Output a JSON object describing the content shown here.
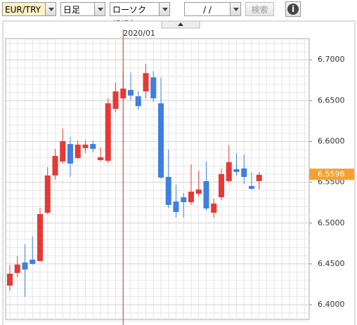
{
  "toolbar": {
    "symbol": "EUR/TRY",
    "period": "日足",
    "chart_style": "ローソク(BID)",
    "date": "/   /",
    "search": "検索",
    "info": "i"
  },
  "chart_data": {
    "type": "candlestick",
    "categories": [
      null,
      null,
      null,
      null,
      null,
      null,
      null,
      null,
      null,
      null,
      null,
      null,
      null,
      null,
      null,
      "2020/01",
      null,
      null,
      null,
      null,
      null,
      null,
      null,
      null,
      null,
      null,
      null,
      null,
      null,
      null,
      null,
      null,
      null,
      null
    ],
    "open": [
      6.4234,
      6.4389,
      6.4517,
      6.4552,
      6.4535,
      6.5127,
      6.5583,
      6.5754,
      6.5969,
      6.5797,
      6.5918,
      6.5969,
      6.5772,
      6.5763,
      6.6399,
      6.6528,
      6.6631,
      6.6553,
      6.6613,
      6.6785,
      6.6467,
      6.5565,
      6.5265,
      6.5316,
      6.5256,
      6.5359,
      6.5514,
      6.5127,
      6.5316,
      6.5514,
      6.566,
      6.5669,
      6.5454,
      6.5514
    ],
    "high": [
      6.4483,
      6.4595,
      6.4741,
      6.4835,
      6.5187,
      6.5686,
      6.5909,
      6.6158,
      6.6055,
      6.6012,
      6.6012,
      6.6012,
      6.5926,
      6.6528,
      6.6717,
      6.6871,
      6.6845,
      6.6613,
      6.6948,
      6.6863,
      6.6785,
      6.59,
      6.5471,
      6.5368,
      6.572,
      6.5643,
      6.5754,
      6.5299,
      6.5668,
      6.5952,
      6.5858,
      6.584,
      6.5617,
      6.5626
    ],
    "low": [
      6.4165,
      6.4337,
      6.4097,
      6.4492,
      6.4526,
      6.511,
      6.5531,
      6.5729,
      6.5565,
      6.5789,
      6.5858,
      6.5866,
      6.5754,
      6.5737,
      6.6356,
      6.6502,
      6.6502,
      6.639,
      6.6528,
      6.6485,
      6.554,
      6.5187,
      6.5067,
      6.5067,
      6.5222,
      6.5325,
      6.5153,
      6.5067,
      6.5282,
      6.5497,
      6.5583,
      6.548,
      6.5411,
      6.5411
    ],
    "close": [
      6.438,
      6.4492,
      6.4431,
      6.45,
      6.511,
      6.5583,
      6.5823,
      6.6004,
      6.5729,
      6.5961,
      6.5961,
      6.5909,
      6.5806,
      6.6467,
      6.6613,
      6.6648,
      6.6562,
      6.6433,
      6.6837,
      6.6528,
      6.5557,
      6.5222,
      6.5136,
      6.5256,
      6.5385,
      6.5411,
      6.5179,
      6.5239,
      6.56,
      6.5746,
      6.5626,
      6.5565,
      6.542,
      6.5591
    ],
    "up_color": "#e53935",
    "down_color": "#3f7fe0",
    "marker_color": "#d03030",
    "ylim": [
      6.382,
      6.726
    ],
    "yticks": [
      {
        "value": 6.4,
        "label": "6.4000"
      },
      {
        "value": 6.45,
        "label": "6.4500"
      },
      {
        "value": 6.5,
        "label": "6.5000"
      },
      {
        "value": 6.55,
        "label": "6.5500"
      },
      {
        "value": 6.6,
        "label": "6.6000"
      },
      {
        "value": 6.65,
        "label": "6.6500"
      },
      {
        "value": 6.7,
        "label": "6.7000"
      }
    ],
    "grid": true,
    "last_price": 6.5598,
    "last_price_color": "#f5a030"
  }
}
